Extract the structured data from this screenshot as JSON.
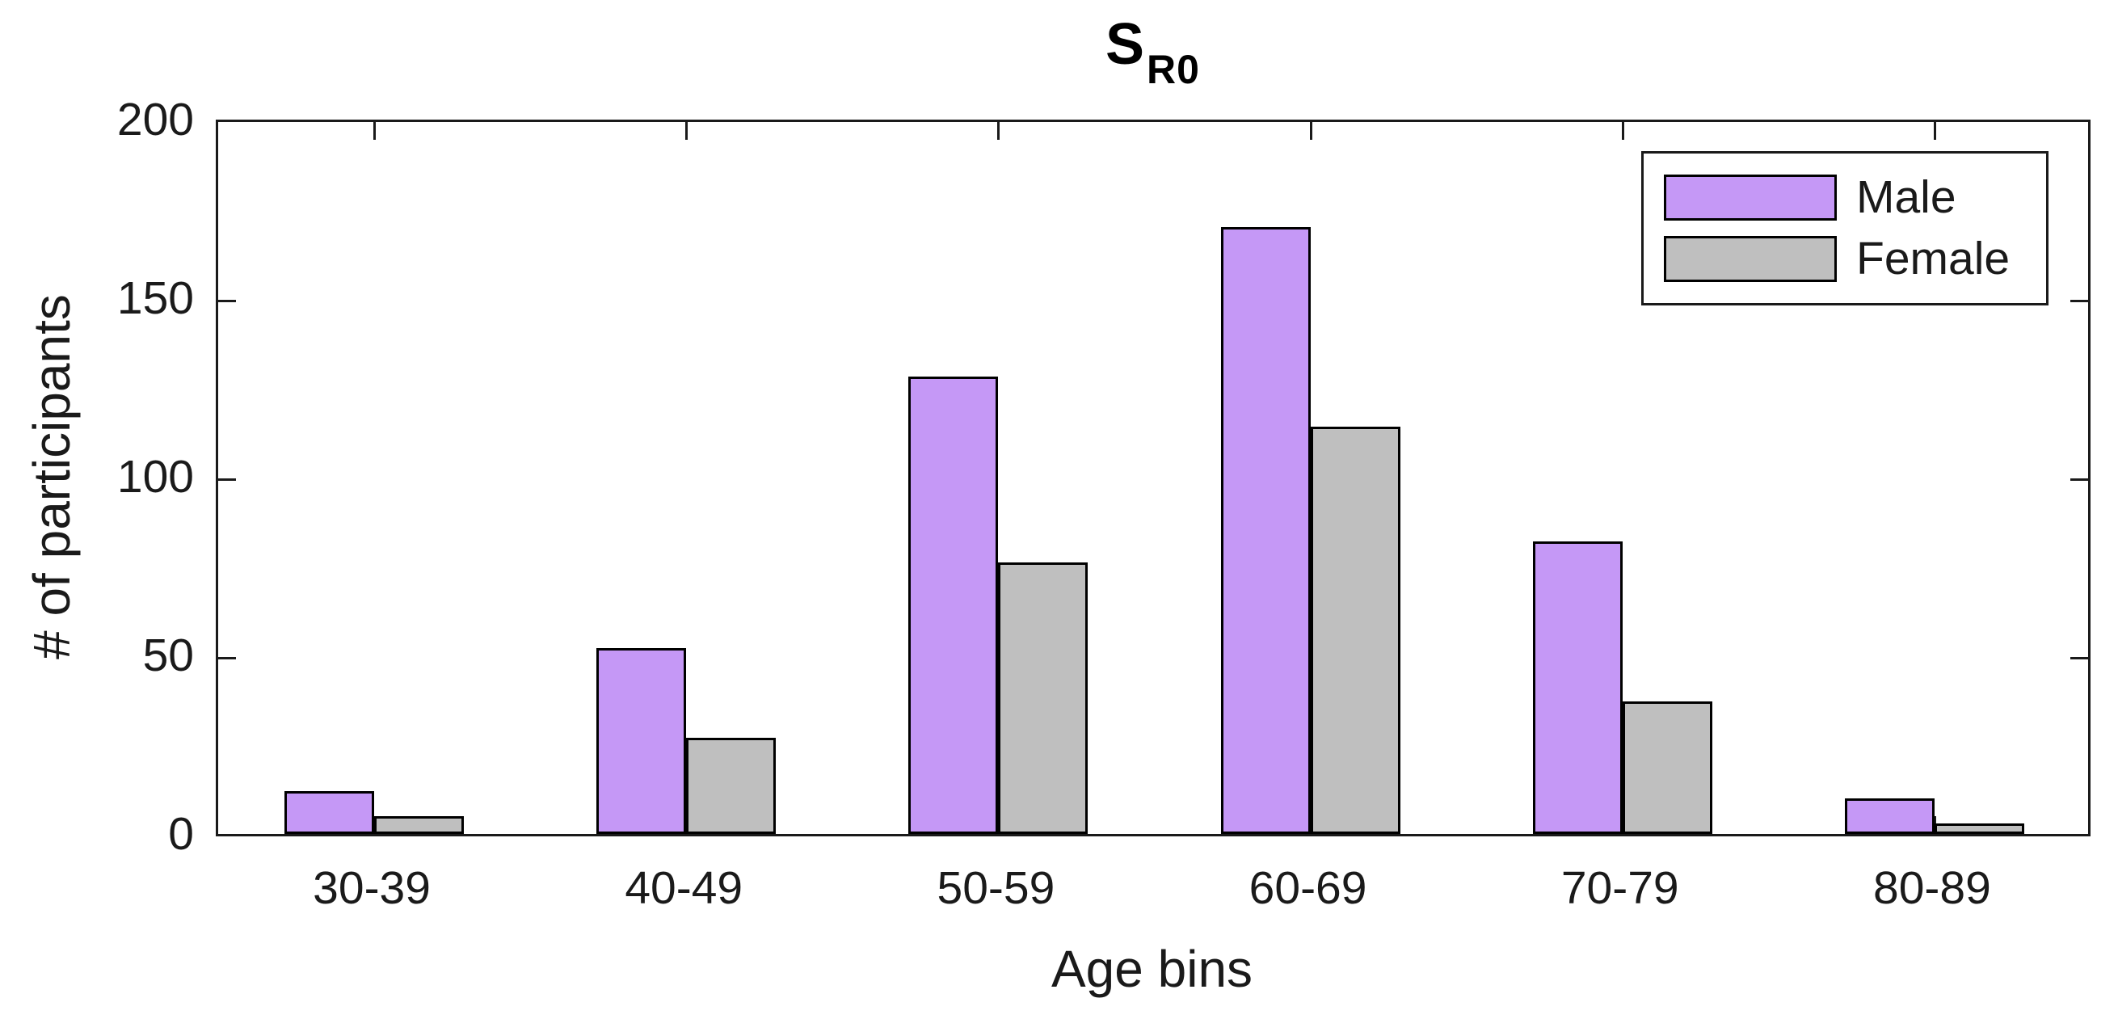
{
  "chart_data": {
    "type": "bar",
    "title": {
      "text": "S",
      "subscript": "R0"
    },
    "xlabel": "Age bins",
    "ylabel": "# of participants",
    "categories": [
      "30-39",
      "40-49",
      "50-59",
      "60-69",
      "70-79",
      "80-89"
    ],
    "series": [
      {
        "name": "Male",
        "color": "#c598f6",
        "values": [
          12,
          52,
          128,
          170,
          82,
          10
        ]
      },
      {
        "name": "Female",
        "color": "#bfbfbf",
        "values": [
          5,
          27,
          76,
          114,
          37,
          3
        ]
      }
    ],
    "ylim": [
      0,
      200
    ],
    "yticks": [
      0,
      50,
      100,
      150,
      200
    ],
    "bar_edge_color": "#000000",
    "axis_color": "#1a1a1a",
    "background_color": "#ffffff",
    "grid": "off",
    "legend": {
      "position": "top-right",
      "entries": [
        "Male",
        "Female"
      ]
    }
  }
}
